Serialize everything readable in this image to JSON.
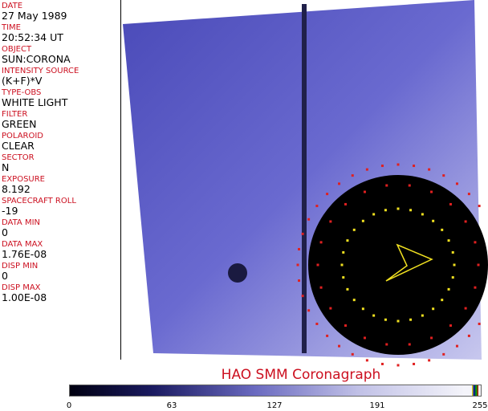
{
  "fields": [
    {
      "label": "DATE",
      "value": "27 May 1989"
    },
    {
      "label": "TIME",
      "value": "20:52:34 UT"
    },
    {
      "label": "OBJECT",
      "value": "SUN:CORONA"
    },
    {
      "label": "INTENSITY SOURCE",
      "value": "(K+F)*V"
    },
    {
      "label": "TYPE-OBS",
      "value": "WHITE LIGHT"
    },
    {
      "label": "FILTER",
      "value": "GREEN"
    },
    {
      "label": "POLAROID",
      "value": "CLEAR"
    },
    {
      "label": "SECTOR",
      "value": "N"
    },
    {
      "label": "EXPOSURE",
      "value": "8.192"
    },
    {
      "label": "SPACECRAFT ROLL",
      "value": "-19"
    },
    {
      "label": "DATA MIN",
      "value": "0"
    },
    {
      "label": "DATA MAX",
      "value": "1.76E-08"
    },
    {
      "label": "DISP MIN",
      "value": "0"
    },
    {
      "label": "DISP MAX",
      "value": "1.00E-08"
    }
  ],
  "title": "HAO   SMM  Coronagraph",
  "colorbar": {
    "ticks": [
      "0",
      "63",
      "127",
      "191",
      "255"
    ],
    "colors": [
      "#000010",
      "#1a1a60",
      "#6a6ac0",
      "#c0c0e6",
      "#f4f4fa"
    ]
  }
}
